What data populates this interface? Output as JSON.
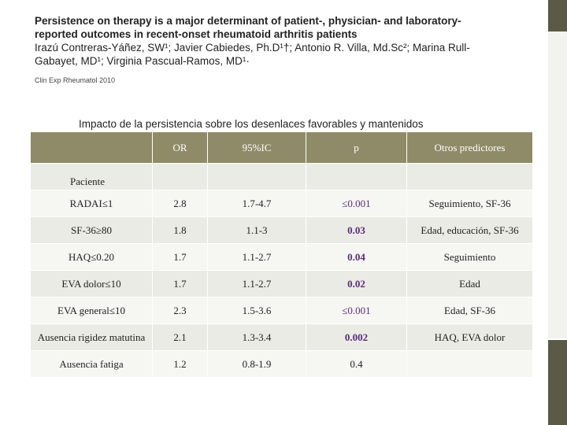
{
  "header": {
    "title_line1": "Persistence on therapy is a major determinant of patient-, physician- and laboratory-",
    "title_line2": "reported outcomes in recent-onset rheumatoid arthritis patients",
    "authors_line1": "Irazú Contreras-Yáñez, SW¹; Javier Cabiedes, Ph.D¹†; Antonio R. Villa, Md.Sc²; Marina Rull-",
    "authors_line2": "Gabayet, MD¹; Virginia Pascual-Ramos, MD¹·",
    "citation": "Clin Exp Rheumatol 2010"
  },
  "table_title": "Impacto de la persistencia sobre los desenlaces favorables y mantenidos",
  "table": {
    "columns": [
      "",
      "OR",
      "95%IC",
      "p",
      "Otros predictores"
    ],
    "section_label": "Paciente",
    "rows": [
      {
        "label": "RADAI≤1",
        "or": "2.8",
        "ic": "1.7-4.7",
        "p": "≤0.001",
        "otros": "Seguimiento, SF-36"
      },
      {
        "label": "SF-36≥80",
        "or": "1.8",
        "ic": "1.1-3",
        "p": "0.03",
        "otros": "Edad, educación, SF-36"
      },
      {
        "label": "HAQ≤0.20",
        "or": "1.7",
        "ic": "1.1-2.7",
        "p": "0.04",
        "otros": "Seguimiento"
      },
      {
        "label": "EVA  dolor≤10",
        "or": "1.7",
        "ic": "1.1-2.7",
        "p": "0.02",
        "otros": "Edad"
      },
      {
        "label": "EVA general≤10",
        "or": "2.3",
        "ic": "1.5-3.6",
        "p": "≤0.001",
        "otros": "Edad, SF-36"
      },
      {
        "label": "Ausencia rigidez matutina",
        "or": "2.1",
        "ic": "1.3-3.4",
        "p": "0.002",
        "otros": "HAQ, EVA dolor"
      },
      {
        "label": "Ausencia fatiga",
        "or": "1.2",
        "ic": "0.8-1.9",
        "p": "0.4",
        "otros": ""
      }
    ]
  },
  "colors": {
    "header_bg": "#8f8b68",
    "row_shade": "#ebebe5",
    "p_value_text": "#5a2d7a",
    "sidebar_block": "#5b5a45"
  }
}
